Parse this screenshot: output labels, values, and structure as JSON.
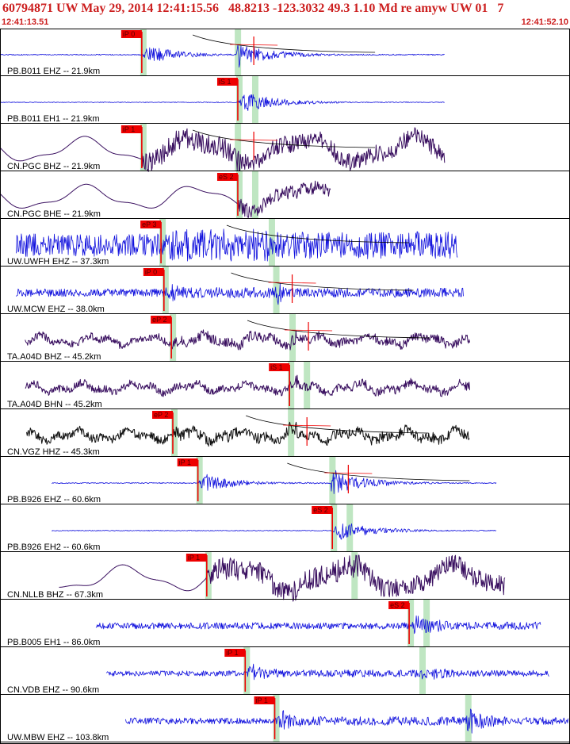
{
  "header": {
    "title": "60794871 UW May 29, 2014 12:41:15.56   48.8213 -123.3032 49.3 1.10 Md re amyw UW 01   7",
    "time_start": "12:41:13.51",
    "time_end": "12:41:52.10"
  },
  "chart_data": {
    "type": "line",
    "title": "60794871 UW May 29, 2014 12:41:15.56   48.8213 -123.3032 49.3 1.10 Md re amyw UW 01   7",
    "x_unit": "seconds after 12:41:13.51",
    "xlim": [
      0,
      38.59
    ],
    "colors": {
      "pick": "#ee0000",
      "window": "#bfe6c2",
      "coda": "#000000",
      "border": "#000000"
    },
    "traces": [
      {
        "label": "PB.B011 EHZ -- 21.9km",
        "color": "#1010dd",
        "start": 0.0,
        "end": 30.1,
        "pick": "iP 0",
        "pick_time": 9.6,
        "s_time": 16.0,
        "style": "hf",
        "pre": 0.04,
        "post": 0.9,
        "coda": true,
        "detail": true
      },
      {
        "label": "PB.B011 EH1 -- 21.9km",
        "color": "#1010dd",
        "start": 0.0,
        "end": 30.1,
        "pick": "iS 1",
        "pick_time": 16.1,
        "s_time": 16.1,
        "style": "hf",
        "pre": 0.03,
        "post": 0.9,
        "coda": false,
        "detail": false
      },
      {
        "label": "CN.PGC BHZ -- 21.9km",
        "color": "#3a1060",
        "start": 0.0,
        "end": 30.1,
        "pick": "iP 1",
        "pick_time": 9.6,
        "s_time": 16.0,
        "style": "lp",
        "pre": 0.55,
        "post": 0.75,
        "coda": true,
        "detail": true
      },
      {
        "label": "CN.PGC BHE -- 21.9km",
        "color": "#3a1060",
        "start": 0.0,
        "end": 22.4,
        "pick": "eS 2",
        "pick_time": 16.1,
        "s_time": 16.1,
        "style": "lp",
        "pre": 0.45,
        "post": 0.6,
        "coda": false,
        "detail": false
      },
      {
        "label": "UW.UWFH EHZ -- 37.3km",
        "color": "#1010dd",
        "start": 1.1,
        "end": 31.0,
        "pick": "eP 3",
        "pick_time": 10.9,
        "s_time": 18.3,
        "style": "hf",
        "pre": 0.9,
        "post": 1.0,
        "coda": true,
        "detail": false
      },
      {
        "label": "UW.MCW EHZ -- 38.0km",
        "color": "#1010dd",
        "start": 1.1,
        "end": 31.4,
        "pick": "iP 0",
        "pick_time": 11.1,
        "s_time": 18.6,
        "style": "hf",
        "pre": 0.3,
        "post": 0.6,
        "coda": true,
        "detail": true
      },
      {
        "label": "TA.A04D BHZ -- 45.2km",
        "color": "#3a1060",
        "start": 1.7,
        "end": 31.8,
        "pick": "eP 2",
        "pick_time": 11.6,
        "s_time": 19.7,
        "style": "mix",
        "pre": 0.4,
        "post": 0.7,
        "coda": true,
        "detail": true
      },
      {
        "label": "TA.A04D BHN -- 45.2km",
        "color": "#3a1060",
        "start": 1.7,
        "end": 31.8,
        "pick": "iS 1",
        "pick_time": 19.6,
        "s_time": 19.6,
        "style": "mix",
        "pre": 0.4,
        "post": 0.6,
        "coda": false,
        "detail": false
      },
      {
        "label": "CN.VGZ HHZ -- 45.3km",
        "color": "#111111",
        "start": 1.8,
        "end": 31.8,
        "pick": "eP 2",
        "pick_time": 11.7,
        "s_time": 19.6,
        "style": "mix",
        "pre": 0.45,
        "post": 0.65,
        "coda": true,
        "detail": true
      },
      {
        "label": "PB.B926 EHZ -- 60.6km",
        "color": "#1010dd",
        "start": 3.5,
        "end": 33.6,
        "pick": "iP 1",
        "pick_time": 13.4,
        "s_time": 22.4,
        "style": "hf",
        "pre": 0.04,
        "post": 0.9,
        "coda": true,
        "detail": true
      },
      {
        "label": "PB.B926 EH2 -- 60.6km",
        "color": "#1010dd",
        "start": 3.5,
        "end": 33.6,
        "pick": "eS 2",
        "pick_time": 22.5,
        "s_time": 22.5,
        "style": "hf",
        "pre": 0.03,
        "post": 0.9,
        "coda": false,
        "detail": false
      },
      {
        "label": "CN.NLLB BHZ -- 67.3km",
        "color": "#3a1060",
        "start": 4.0,
        "end": 34.2,
        "pick": "iP 1",
        "pick_time": 14.0,
        "s_time": 23.9,
        "style": "lp",
        "pre": 0.6,
        "post": 0.8,
        "coda": false,
        "detail": false
      },
      {
        "label": "PB.B005 EH1 -- 86.0km",
        "color": "#1010dd",
        "start": 6.5,
        "end": 36.6,
        "pick": "eS 2",
        "pick_time": 27.7,
        "s_time": 27.7,
        "style": "hf",
        "pre": 0.25,
        "post": 1.0,
        "coda": false,
        "detail": false
      },
      {
        "label": "CN.VDB EHZ -- 90.6km",
        "color": "#1010dd",
        "start": 7.2,
        "end": 37.2,
        "pick": "iP 1",
        "pick_time": 16.6,
        "s_time": 28.5,
        "style": "hf",
        "pre": 0.2,
        "post": 0.7,
        "coda": false,
        "detail": false
      },
      {
        "label": "UW.MBW EHZ -- 103.8km",
        "color": "#1010dd",
        "start": 8.5,
        "end": 38.5,
        "pick": "iP 1",
        "pick_time": 18.6,
        "s_time": 31.6,
        "style": "hf",
        "pre": 0.25,
        "post": 0.9,
        "coda": false,
        "detail": false
      }
    ]
  }
}
